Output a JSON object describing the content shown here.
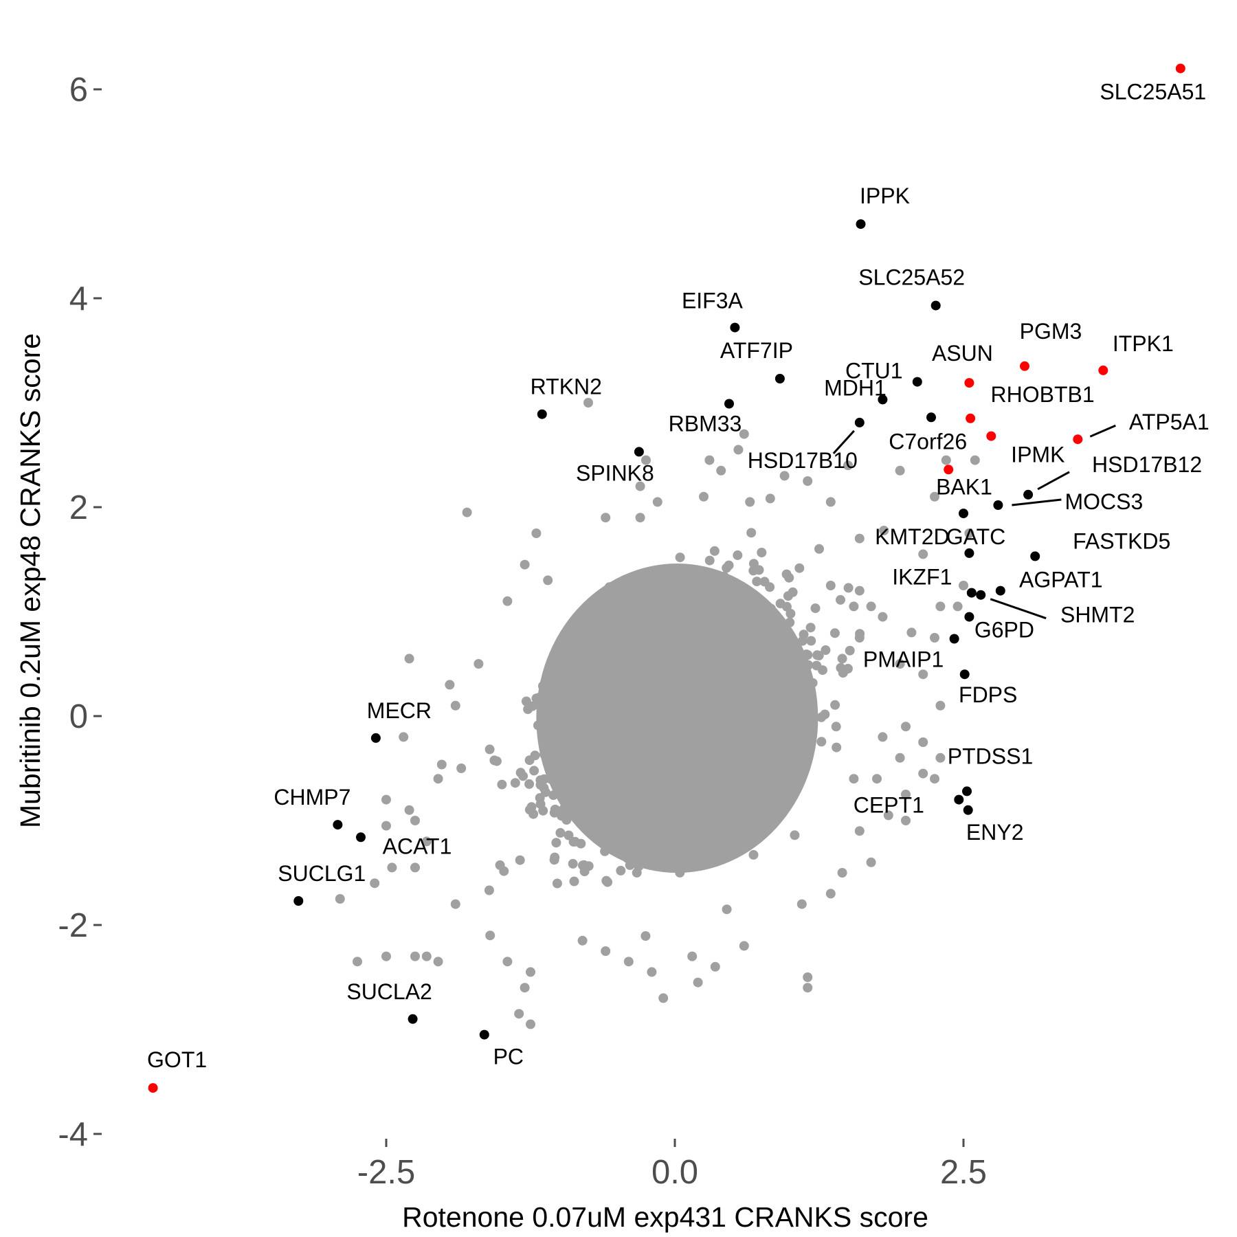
{
  "chart_data": {
    "type": "scatter",
    "title": "",
    "xlabel": "Rotenone 0.07uM exp431 CRANKS score",
    "ylabel": "Mubritinib 0.2uM exp48 CRANKS score",
    "xlim": [
      -4.75,
      4.95
    ],
    "ylim": [
      -4.05,
      6.65
    ],
    "x_ticks": [
      {
        "value": -2.5,
        "label": "-2.5"
      },
      {
        "value": 0,
        "label": "0.0"
      },
      {
        "value": 2.5,
        "label": "2.5"
      }
    ],
    "y_ticks": [
      {
        "value": -4,
        "label": "-4"
      },
      {
        "value": -2,
        "label": "-2"
      },
      {
        "value": 0,
        "label": "0"
      },
      {
        "value": 2,
        "label": "2"
      },
      {
        "value": 4,
        "label": "4"
      },
      {
        "value": 6,
        "label": "6"
      }
    ],
    "grid": false,
    "colors": {
      "background": "#ffffff",
      "points": "#a0a0a0",
      "highlight": "#ff0000",
      "labelled": "#000000",
      "tick_text": "#4d4d4d"
    },
    "background_points": {
      "description": "Several thousand grey genes forming a dense cloud centred near (0, 0)",
      "center": [
        0.0,
        0.0
      ],
      "color": "#a0a0a0",
      "outliers": [
        [
          -0.75,
          3.0
        ],
        [
          -1.8,
          1.95
        ],
        [
          -1.2,
          1.75
        ],
        [
          -0.6,
          1.9
        ],
        [
          -0.25,
          2.45
        ],
        [
          -0.3,
          2.2
        ],
        [
          0.3,
          2.45
        ],
        [
          0.4,
          2.35
        ],
        [
          0.55,
          2.55
        ],
        [
          0.6,
          2.7
        ],
        [
          0.25,
          2.1
        ],
        [
          0.65,
          2.05
        ],
        [
          -0.15,
          2.05
        ],
        [
          -0.3,
          1.9
        ],
        [
          0.95,
          2.3
        ],
        [
          1.15,
          2.25
        ],
        [
          1.5,
          2.4
        ],
        [
          1.35,
          2.05
        ],
        [
          1.95,
          2.35
        ],
        [
          2.35,
          2.45
        ],
        [
          2.6,
          2.45
        ],
        [
          2.25,
          2.1
        ],
        [
          2.55,
          1.75
        ],
        [
          2.15,
          1.55
        ],
        [
          1.6,
          1.7
        ],
        [
          2.3,
          1.05
        ],
        [
          2.05,
          0.8
        ],
        [
          1.95,
          0.5
        ],
        [
          2.15,
          0.4
        ],
        [
          2.3,
          0.1
        ],
        [
          2.0,
          -0.1
        ],
        [
          2.15,
          -0.25
        ],
        [
          2.3,
          -0.4
        ],
        [
          1.95,
          -0.4
        ],
        [
          2.25,
          -0.6
        ],
        [
          2.0,
          -0.75
        ],
        [
          1.85,
          -0.95
        ],
        [
          1.6,
          -1.1
        ],
        [
          1.7,
          -1.4
        ],
        [
          1.45,
          -1.5
        ],
        [
          1.35,
          -1.7
        ],
        [
          1.1,
          -1.8
        ],
        [
          1.15,
          -2.5
        ],
        [
          1.15,
          -2.6
        ],
        [
          0.45,
          -1.85
        ],
        [
          0.6,
          -2.2
        ],
        [
          0.35,
          -2.4
        ],
        [
          0.15,
          -2.3
        ],
        [
          0.2,
          -2.55
        ],
        [
          -0.1,
          -2.7
        ],
        [
          -0.2,
          -2.45
        ],
        [
          -0.4,
          -2.35
        ],
        [
          -0.6,
          -2.25
        ],
        [
          -0.8,
          -2.15
        ],
        [
          -1.25,
          -2.45
        ],
        [
          -1.3,
          -2.6
        ],
        [
          -1.35,
          -2.85
        ],
        [
          -1.25,
          -2.95
        ],
        [
          -1.45,
          -2.35
        ],
        [
          -1.6,
          -2.1
        ],
        [
          -1.9,
          -1.8
        ],
        [
          -2.25,
          -1.45
        ],
        [
          -2.6,
          -1.6
        ],
        [
          -2.9,
          -1.75
        ],
        [
          -2.75,
          -2.35
        ],
        [
          -2.5,
          -2.3
        ],
        [
          -2.15,
          -2.3
        ],
        [
          -2.05,
          -2.35
        ],
        [
          -2.25,
          -2.3
        ],
        [
          -2.5,
          -0.8
        ],
        [
          -2.3,
          -0.9
        ],
        [
          -2.45,
          -1.45
        ],
        [
          -2.5,
          -1.05
        ],
        [
          -2.25,
          -1.0
        ],
        [
          -2.15,
          -1.2
        ],
        [
          -2.05,
          -0.6
        ],
        [
          -2.35,
          -0.2
        ],
        [
          -2.3,
          0.55
        ],
        [
          -1.85,
          -0.5
        ],
        [
          -1.9,
          0.1
        ],
        [
          -1.95,
          0.3
        ],
        [
          -1.7,
          0.5
        ],
        [
          -1.45,
          1.1
        ],
        [
          -1.3,
          1.45
        ],
        [
          -1.1,
          1.3
        ],
        [
          1.35,
          1.25
        ],
        [
          1.55,
          1.05
        ],
        [
          1.8,
          0.95
        ],
        [
          1.6,
          0.75
        ],
        [
          1.4,
          -0.3
        ],
        [
          1.55,
          -0.6
        ],
        [
          1.8,
          -0.2
        ],
        [
          1.75,
          -0.6
        ],
        [
          2.15,
          -0.55
        ],
        [
          2.0,
          -1.0
        ],
        [
          2.25,
          0.75
        ],
        [
          1.6,
          1.2
        ],
        [
          1.45,
          0.55
        ],
        [
          1.25,
          1.6
        ],
        [
          1.7,
          1.05
        ],
        [
          2.5,
          1.25
        ],
        [
          2.45,
          1.05
        ]
      ]
    },
    "highlighted": [
      {
        "label": "SLC25A51",
        "x": 4.38,
        "y": 6.2
      },
      {
        "label": "PGM3",
        "x": 3.03,
        "y": 3.35
      },
      {
        "label": "ITPK1",
        "x": 3.71,
        "y": 3.31
      },
      {
        "label": "ASUN",
        "x": 2.55,
        "y": 3.19
      },
      {
        "label": "RHOBTB1",
        "x": 2.56,
        "y": 2.85
      },
      {
        "label": "IPMK",
        "x": 2.74,
        "y": 2.68
      },
      {
        "label": "ATP5A1",
        "x": 3.49,
        "y": 2.65
      },
      {
        "label": "C7orf26",
        "x": 2.37,
        "y": 2.36
      },
      {
        "label": "GOT1",
        "x": -4.52,
        "y": -3.56
      }
    ],
    "labelled_genes": [
      {
        "label": "IPPK",
        "x": 1.61,
        "y": 4.71
      },
      {
        "label": "SLC25A52",
        "x": 2.26,
        "y": 3.93
      },
      {
        "label": "EIF3A",
        "x": 0.52,
        "y": 3.72
      },
      {
        "label": "ATF7IP",
        "x": 0.91,
        "y": 3.23
      },
      {
        "label": "CTU1",
        "x": 2.1,
        "y": 3.2
      },
      {
        "label": "RTKN2",
        "x": -1.15,
        "y": 2.89
      },
      {
        "label": "RBM33",
        "x": 0.47,
        "y": 2.99
      },
      {
        "label": "MDH1",
        "x": 1.8,
        "y": 3.03
      },
      {
        "label": "HSD17B10",
        "x": 1.6,
        "y": 2.81
      },
      {
        "label": "SPINK8",
        "x": -0.31,
        "y": 2.53
      },
      {
        "label": "BAK1",
        "x": 2.22,
        "y": 2.86
      },
      {
        "label": "HSD17B12",
        "x": 3.06,
        "y": 2.12
      },
      {
        "label": "MOCS3",
        "x": 2.8,
        "y": 2.02
      },
      {
        "label": "GATC",
        "x": 2.5,
        "y": 1.94
      },
      {
        "label": "KMT2D",
        "x": 2.55,
        "y": 1.56
      },
      {
        "label": "FASTKD5",
        "x": 3.12,
        "y": 1.53
      },
      {
        "label": "IKZF1",
        "x": 2.57,
        "y": 1.18
      },
      {
        "label": "AGPAT1",
        "x": 2.82,
        "y": 1.2
      },
      {
        "label": "SHMT2",
        "x": 2.65,
        "y": 1.16
      },
      {
        "label": "G6PD",
        "x": 2.55,
        "y": 0.95
      },
      {
        "label": "PMAIP1",
        "x": 2.42,
        "y": 0.74
      },
      {
        "label": "FDPS",
        "x": 2.51,
        "y": 0.4
      },
      {
        "label": "PTDSS1",
        "x": 2.53,
        "y": -0.72
      },
      {
        "label": "CEPT1",
        "x": 2.46,
        "y": -0.8
      },
      {
        "label": "ENY2",
        "x": 2.54,
        "y": -0.9
      },
      {
        "label": "MECR",
        "x": -2.59,
        "y": -0.21
      },
      {
        "label": "CHMP7",
        "x": -2.92,
        "y": -1.04
      },
      {
        "label": "ACAT1",
        "x": -2.72,
        "y": -1.16
      },
      {
        "label": "SUCLG1",
        "x": -3.26,
        "y": -1.77
      },
      {
        "label": "SUCLA2",
        "x": -2.27,
        "y": -2.9
      },
      {
        "label": "PC",
        "x": -1.65,
        "y": -3.05
      }
    ]
  }
}
